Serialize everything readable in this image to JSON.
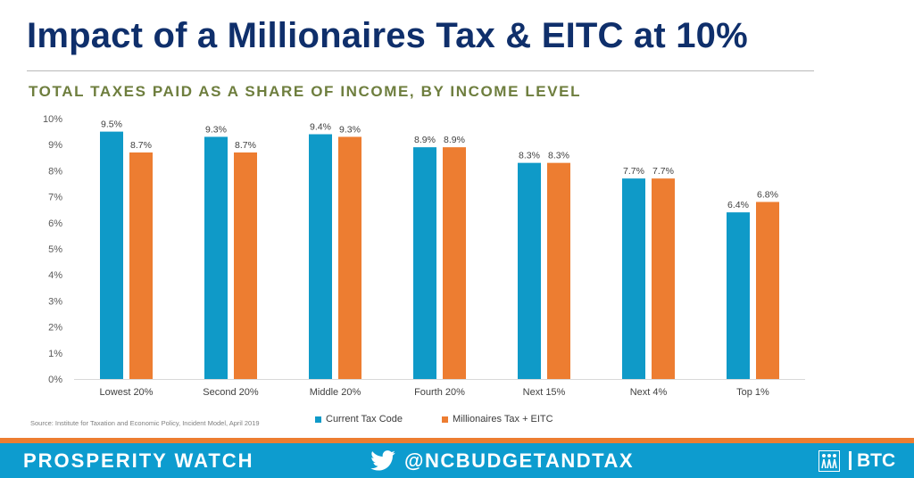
{
  "header": {
    "title": "Impact of a Millionaires Tax & EITC at 10%",
    "subtitle": "TOTAL TAXES PAID AS A SHARE OF INCOME, BY INCOME LEVEL"
  },
  "chart_data": {
    "type": "bar",
    "title": "Impact of a Millionaires Tax & EITC at 10%",
    "subtitle": "TOTAL TAXES PAID AS A SHARE OF INCOME, BY INCOME LEVEL",
    "xlabel": "",
    "ylabel": "",
    "categories": [
      "Lowest 20%",
      "Second 20%",
      "Middle 20%",
      "Fourth 20%",
      "Next 15%",
      "Next 4%",
      "Top 1%"
    ],
    "series": [
      {
        "name": "Current Tax Code",
        "color": "#0f9ac8",
        "values": [
          9.5,
          9.3,
          9.4,
          8.9,
          8.3,
          7.7,
          6.4
        ],
        "labels": [
          "9.5%",
          "9.3%",
          "9.4%",
          "8.9%",
          "8.3%",
          "7.7%",
          "6.4%"
        ]
      },
      {
        "name": "Millionaires Tax + EITC",
        "color": "#ed7d31",
        "values": [
          8.7,
          8.7,
          9.3,
          8.9,
          8.3,
          7.7,
          6.8
        ],
        "labels": [
          "8.7%",
          "8.7%",
          "9.3%",
          "8.9%",
          "8.3%",
          "7.7%",
          "6.8%"
        ]
      }
    ],
    "ylim": [
      0,
      10
    ],
    "yticks": [
      "0%",
      "1%",
      "2%",
      "3%",
      "4%",
      "5%",
      "6%",
      "7%",
      "8%",
      "9%",
      "10%"
    ],
    "grid": false,
    "legend_position": "bottom-center"
  },
  "source": "Source: Institute for Taxation and Economic Policy, Incident Model, April 2019",
  "footer": {
    "left_text": "PROSPERITY WATCH",
    "handle": "@NCBUDGETANDTAX",
    "brand": "BTC",
    "twitter_icon": "twitter-bird-icon",
    "logo_icon": "btc-figures-logo-icon"
  }
}
